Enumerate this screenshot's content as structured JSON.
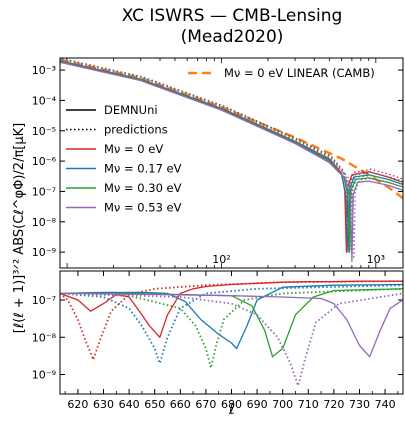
{
  "chart_data": {
    "type": "line",
    "title": "XC ISWRS — CMB-Lensing",
    "subtitle": "(Mead2020)",
    "ylabel": "[ℓ(ℓ + 1)]³ᐟ² ABS(Cℓ^φΦ)/2/π[μK]",
    "xlabel": "ℓ",
    "colors": {
      "camb": "#ff7f0e",
      "nu0": "#d62728",
      "nu017": "#1f77b4",
      "nu030": "#2ca02c",
      "nu053": "#9467bd"
    },
    "top_panel": {
      "x_scale": "log",
      "y_scale": "log",
      "xlim": [
        9,
        1500
      ],
      "ylim": [
        3e-10,
        0.0025
      ],
      "x_ticks": [
        {
          "v": 100,
          "label": "10²"
        },
        {
          "v": 1000,
          "label": "10³"
        }
      ],
      "y_ticks": [
        {
          "v": 0.001,
          "label": "10⁻³"
        },
        {
          "v": 0.0001,
          "label": "10⁻⁴"
        },
        {
          "v": 1e-05,
          "label": "10⁻⁵"
        },
        {
          "v": 1e-06,
          "label": "10⁻⁶"
        },
        {
          "v": 1e-07,
          "label": "10⁻⁷"
        },
        {
          "v": 1e-08,
          "label": "10⁻⁸"
        },
        {
          "v": 1e-09,
          "label": "10⁻⁹"
        }
      ],
      "legend_top_right": [
        {
          "label": "Mν = 0 eV LINEAR (CAMB)",
          "color_key": "camb",
          "style": "dashed"
        }
      ],
      "legend_left": [
        {
          "label": "DEMNUni",
          "color_key": "black",
          "style": "solid"
        },
        {
          "label": "predictions",
          "color_key": "black",
          "style": "dotted"
        },
        {
          "label": "Mν = 0 eV",
          "color_key": "nu0",
          "style": "solid"
        },
        {
          "label": "Mν = 0.17 eV",
          "color_key": "nu017",
          "style": "solid"
        },
        {
          "label": "Mν = 0.30 eV",
          "color_key": "nu030",
          "style": "solid"
        },
        {
          "label": "Mν = 0.53 eV",
          "color_key": "nu053",
          "style": "solid"
        }
      ],
      "series": [
        {
          "name": "Mν = 0 eV LINEAR (CAMB)",
          "color_key": "camb",
          "style": "dashed",
          "x": [
            9,
            30,
            100,
            300,
            600,
            900,
            1200,
            1500
          ],
          "y": [
            0.0022,
            0.00055,
            6e-05,
            6e-06,
            1.2e-06,
            3.5e-07,
            1.4e-07,
            6e-08
          ]
        },
        {
          "name": "Mν = 0 eV",
          "color_key": "nu0",
          "style": "solid",
          "zero_at": 645,
          "x": [
            9,
            30,
            100,
            300,
            500,
            600,
            630,
            645,
            660,
            700,
            900,
            1200,
            1500
          ],
          "y": [
            0.002,
            0.0005,
            5.5e-05,
            4.5e-06,
            1.2e-06,
            4e-07,
            1e-07,
            1e-09,
            1.5e-07,
            3.5e-07,
            4.5e-07,
            3e-07,
            2e-07
          ]
        },
        {
          "name": "Mν = 0.17 eV",
          "color_key": "nu017",
          "style": "solid",
          "zero_at": 660,
          "x": [
            9,
            30,
            100,
            300,
            500,
            600,
            640,
            660,
            680,
            720,
            900,
            1200,
            1500
          ],
          "y": [
            0.00195,
            0.00049,
            5.3e-05,
            4.3e-06,
            1.1e-06,
            3.5e-07,
            8e-08,
            1e-09,
            1.3e-07,
            3e-07,
            3.5e-07,
            2.5e-07,
            1.7e-07
          ]
        },
        {
          "name": "Mν = 0.30 eV",
          "color_key": "nu030",
          "style": "solid",
          "zero_at": 675,
          "x": [
            9,
            30,
            100,
            300,
            500,
            620,
            660,
            675,
            690,
            740,
            900,
            1200,
            1500
          ],
          "y": [
            0.0019,
            0.00047,
            5.1e-05,
            4.1e-06,
            1e-06,
            3e-07,
            7e-08,
            1e-09,
            1.1e-07,
            2.5e-07,
            2.8e-07,
            2e-07,
            1.4e-07
          ]
        },
        {
          "name": "Mν = 0.53 eV",
          "color_key": "nu053",
          "style": "solid",
          "zero_at": 700,
          "x": [
            9,
            30,
            100,
            300,
            500,
            640,
            685,
            700,
            715,
            760,
            900,
            1200,
            1500
          ],
          "y": [
            0.0018,
            0.00045,
            4.8e-05,
            3.8e-06,
            9e-07,
            2.5e-07,
            5e-08,
            5e-10,
            8e-08,
            2e-07,
            2.2e-07,
            1.6e-07,
            1.1e-07
          ]
        }
      ]
    },
    "bottom_panel": {
      "x_scale": "linear",
      "y_scale": "log",
      "xlim": [
        613,
        747
      ],
      "ylim": [
        3e-10,
        6e-07
      ],
      "x_ticks": [
        620,
        630,
        640,
        650,
        660,
        670,
        680,
        690,
        700,
        710,
        720,
        730,
        740
      ],
      "y_ticks": [
        {
          "v": 1e-07,
          "label": "10⁻⁷"
        },
        {
          "v": 1e-08,
          "label": "10⁻⁸"
        },
        {
          "v": 1e-09,
          "label": "10⁻⁹"
        }
      ],
      "series": [
        {
          "name": "Mν = 0 eV (DEMNUni)",
          "color_key": "nu0",
          "style": "solid",
          "x": [
            613,
            620,
            625,
            630,
            635,
            640,
            645,
            648,
            652,
            655,
            660,
            665,
            670,
            680,
            690,
            700,
            710,
            720,
            730,
            747
          ],
          "y": [
            1.5e-07,
            1e-07,
            5e-08,
            8e-08,
            1.4e-07,
            1.2e-07,
            4e-08,
            2e-08,
            1e-08,
            4e-08,
            1.5e-07,
            2e-07,
            2.3e-07,
            2.6e-07,
            2.8e-07,
            3e-07,
            3.1e-07,
            3.1e-07,
            3.2e-07,
            3.2e-07
          ]
        },
        {
          "name": "Mν = 0 eV (predictions)",
          "color_key": "nu0",
          "style": "dotted",
          "x": [
            613,
            616,
            620,
            623,
            626,
            629,
            633,
            640,
            650,
            670,
            700,
            747
          ],
          "y": [
            1.5e-07,
            1e-07,
            3e-08,
            8e-09,
            2.5e-09,
            1e-08,
            5e-08,
            1.4e-07,
            2e-07,
            2.5e-07,
            3e-07,
            3.2e-07
          ]
        },
        {
          "name": "Mν = 0.17 eV (DEMNUni)",
          "color_key": "nu017",
          "style": "solid",
          "x": [
            613,
            630,
            645,
            655,
            662,
            668,
            675,
            680,
            682,
            686,
            690,
            700,
            720,
            747
          ],
          "y": [
            1.5e-07,
            1.6e-07,
            1.6e-07,
            1.5e-07,
            9e-08,
            3e-08,
            1.2e-08,
            7e-09,
            5e-09,
            2e-08,
            1e-07,
            2.2e-07,
            2.5e-07,
            2.6e-07
          ]
        },
        {
          "name": "Mν = 0.17 eV (predictions)",
          "color_key": "nu017",
          "style": "dotted",
          "x": [
            613,
            630,
            640,
            645,
            650,
            652,
            655,
            660,
            670,
            690,
            747
          ],
          "y": [
            1.5e-07,
            1.2e-07,
            6e-08,
            2e-08,
            5e-09,
            2e-09,
            1e-08,
            6e-08,
            1.5e-07,
            2e-07,
            2.5e-07
          ]
        },
        {
          "name": "Mν = 0.30 eV (DEMNUni)",
          "color_key": "nu030",
          "style": "solid",
          "x": [
            613,
            640,
            660,
            680,
            688,
            693,
            696,
            700,
            705,
            712,
            720,
            747
          ],
          "y": [
            1.5e-07,
            1.5e-07,
            1.4e-07,
            1.3e-07,
            7e-08,
            1.5e-08,
            3e-09,
            5e-09,
            4e-08,
            1.2e-07,
            1.8e-07,
            2e-07
          ]
        },
        {
          "name": "Mν = 0.30 eV (predictions)",
          "color_key": "nu030",
          "style": "dotted",
          "x": [
            613,
            640,
            660,
            666,
            670,
            672,
            674,
            677,
            685,
            700,
            747
          ],
          "y": [
            1.5e-07,
            1.3e-07,
            6e-08,
            2e-08,
            5e-09,
            1.5e-09,
            6e-09,
            3e-08,
            1e-07,
            1.5e-07,
            2e-07
          ]
        },
        {
          "name": "Mν = 0.53 eV (DEMNUni)",
          "color_key": "nu053",
          "style": "solid",
          "x": [
            613,
            650,
            680,
            700,
            715,
            720,
            725,
            730,
            734,
            738,
            742,
            747
          ],
          "y": [
            1.5e-07,
            1.4e-07,
            1.3e-07,
            1.2e-07,
            1.1e-07,
            8e-08,
            3e-08,
            6e-09,
            3e-09,
            1.5e-08,
            6e-08,
            1e-07
          ]
        },
        {
          "name": "Mν = 0.53 eV (predictions)",
          "color_key": "nu053",
          "style": "dotted",
          "x": [
            613,
            660,
            680,
            690,
            698,
            703,
            706,
            709,
            713,
            722,
            747
          ],
          "y": [
            1.5e-07,
            1.2e-07,
            8e-08,
            4e-08,
            1e-08,
            2e-09,
            5e-10,
            3e-09,
            2.5e-08,
            8e-08,
            1.5e-07
          ]
        }
      ]
    }
  }
}
